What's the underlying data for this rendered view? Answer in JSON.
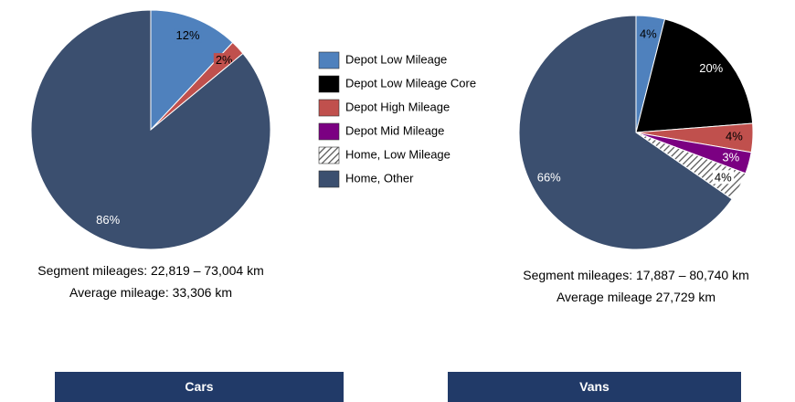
{
  "legend": [
    {
      "name": "Depot Low Mileage",
      "color": "#4f81bd"
    },
    {
      "name": "Depot Low Mileage Core",
      "color": "#000000"
    },
    {
      "name": "Depot High Mileage",
      "color": "#c0504d"
    },
    {
      "name": "Depot Mid Mileage",
      "color": "#7b0082"
    },
    {
      "name": "Home, Low Mileage",
      "color": "hatch"
    },
    {
      "name": "Home, Other",
      "color": "#3b4f6f"
    }
  ],
  "chart_data": [
    {
      "type": "pie",
      "title": "Cars",
      "categories": [
        "Depot Low Mileage",
        "Depot High Mileage",
        "Home, Other"
      ],
      "values": [
        12,
        2,
        86
      ],
      "value_labels": [
        "12%",
        "2%",
        "86%"
      ],
      "caption": [
        "Segment mileages: 22,819 – 73,004 km",
        "Average mileage: 33,306 km"
      ]
    },
    {
      "type": "pie",
      "title": "Vans",
      "categories": [
        "Depot Low Mileage",
        "Depot Low Mileage Core",
        "Depot High Mileage",
        "Depot Mid Mileage",
        "Home, Low Mileage",
        "Home, Other"
      ],
      "values": [
        4,
        20,
        4,
        3,
        4,
        66
      ],
      "value_labels": [
        "4%",
        "20%",
        "4%",
        "3%",
        "4%",
        "66%"
      ],
      "caption": [
        "Segment mileages: 17,887 – 80,740 km",
        "Average mileage 27,729 km"
      ]
    }
  ]
}
